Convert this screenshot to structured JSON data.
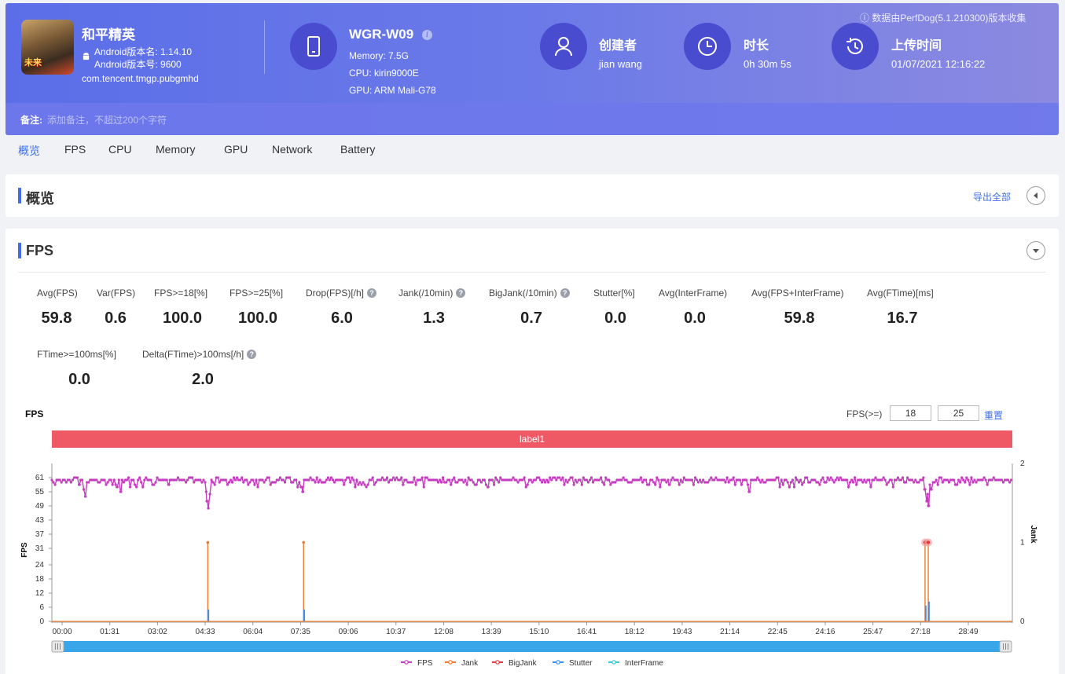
{
  "header": {
    "game": {
      "name": "和平精英",
      "version_name": "Android版本名: 1.14.10",
      "version_code": "Android版本号: 9600",
      "package": "com.tencent.tmgp.pubgmhd",
      "icon_text": "未来"
    },
    "device": {
      "name": "WGR-W09",
      "memory": "Memory: 7.5G",
      "cpu": "CPU: kirin9000E",
      "gpu": "GPU: ARM Mali-G78"
    },
    "creator": {
      "title": "创建者",
      "value": "jian wang"
    },
    "duration": {
      "title": "时长",
      "value": "0h 30m 5s"
    },
    "upload": {
      "title": "上传时间",
      "value": "01/07/2021 12:16:22"
    },
    "source_note": "数据由PerfDog(5.1.210300)版本收集",
    "note": {
      "label": "备注:",
      "placeholder": "添加备注，不超过200个字符"
    }
  },
  "tabs": [
    "概览",
    "FPS",
    "CPU",
    "Memory",
    "GPU",
    "Network",
    "Battery"
  ],
  "overview": {
    "title": "概览",
    "export_label": "导出全部"
  },
  "fps_section": {
    "title": "FPS",
    "metrics_row1": [
      {
        "label": "Avg(FPS)",
        "value": "59.8",
        "help": false
      },
      {
        "label": "Var(FPS)",
        "value": "0.6",
        "help": false
      },
      {
        "label": "FPS>=18[%]",
        "value": "100.0",
        "help": false
      },
      {
        "label": "FPS>=25[%]",
        "value": "100.0",
        "help": false
      },
      {
        "label": "Drop(FPS)[/h]",
        "value": "6.0",
        "help": true
      },
      {
        "label": "Jank(/10min)",
        "value": "1.3",
        "help": true
      },
      {
        "label": "BigJank(/10min)",
        "value": "0.7",
        "help": true
      },
      {
        "label": "Stutter[%]",
        "value": "0.0",
        "help": false
      },
      {
        "label": "Avg(InterFrame)",
        "value": "0.0",
        "help": false
      },
      {
        "label": "Avg(FPS+InterFrame)",
        "value": "59.8",
        "help": false
      },
      {
        "label": "Avg(FTime)[ms]",
        "value": "16.7",
        "help": false
      }
    ],
    "metrics_row2": [
      {
        "label": "FTime>=100ms[%]",
        "value": "0.0",
        "help": false
      },
      {
        "label": "Delta(FTime)>100ms[/h]",
        "value": "2.0",
        "help": true
      }
    ],
    "chart_title": "FPS",
    "threshold_label": "FPS(>=)",
    "threshold_low": "18",
    "threshold_high": "25",
    "reset_label": "重置",
    "label_bar": "label1"
  },
  "chart_data": {
    "type": "line",
    "xlabel": "",
    "ylabel": "FPS",
    "y2label": "Jank",
    "x_ticks": [
      "00:00",
      "01:31",
      "03:02",
      "04:33",
      "06:04",
      "07:35",
      "09:06",
      "10:37",
      "12:08",
      "13:39",
      "15:10",
      "16:41",
      "18:12",
      "19:43",
      "21:14",
      "22:45",
      "24:16",
      "25:47",
      "27:18",
      "28:49"
    ],
    "y_ticks": [
      0,
      6,
      12,
      18,
      24,
      31,
      37,
      43,
      49,
      55,
      61
    ],
    "y_max": 67,
    "y2_ticks": [
      0,
      1,
      2
    ],
    "x_range_seconds": [
      0,
      1805
    ],
    "series": [
      {
        "name": "FPS",
        "color": "#c63ec0",
        "baseline": 60,
        "dips": [
          [
            52,
            58
          ],
          [
            60,
            56
          ],
          [
            63,
            53
          ],
          [
            122,
            57
          ],
          [
            130,
            55
          ],
          [
            220,
            58
          ],
          [
            290,
            55
          ],
          [
            292,
            51
          ],
          [
            294,
            48
          ],
          [
            297,
            54
          ],
          [
            470,
            57
          ],
          [
            472,
            55
          ],
          [
            660,
            58
          ],
          [
            820,
            57
          ],
          [
            1160,
            58
          ],
          [
            1310,
            55
          ],
          [
            1386,
            57
          ],
          [
            1640,
            56
          ],
          [
            1644,
            51
          ],
          [
            1646,
            54
          ],
          [
            1648,
            49
          ],
          [
            1652,
            56
          ]
        ]
      },
      {
        "name": "Jank",
        "color": "#f07a2a",
        "events": [
          [
            293,
            1
          ],
          [
            473,
            1
          ],
          [
            1641,
            1
          ],
          [
            1647,
            1
          ]
        ]
      },
      {
        "name": "BigJank",
        "color": "#e23b3b",
        "events": [
          [
            1641,
            1
          ],
          [
            1647,
            1
          ]
        ]
      },
      {
        "name": "Stutter",
        "color": "#3a8ef0",
        "events": [
          [
            293,
            0.15
          ],
          [
            473,
            0.15
          ],
          [
            1641,
            0.2
          ],
          [
            1647,
            0.25
          ]
        ]
      },
      {
        "name": "InterFrame",
        "color": "#39c8d8",
        "events": []
      }
    ]
  }
}
